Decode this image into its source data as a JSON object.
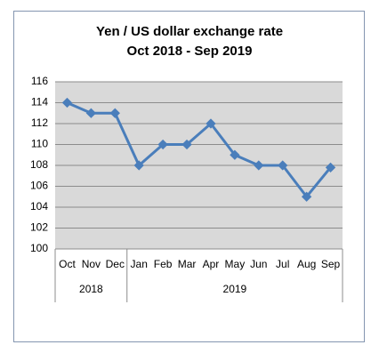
{
  "chart_data": {
    "type": "line",
    "title": "Yen / US dollar exchange rate",
    "subtitle": "Oct 2018 -  Sep  2019",
    "categories": [
      "Oct",
      "Nov",
      "Dec",
      "Jan",
      "Feb",
      "Mar",
      "Apr",
      "May",
      "Jun",
      "Jul",
      "Aug",
      "Sep"
    ],
    "category_groups": [
      {
        "label": "2018",
        "span": 3
      },
      {
        "label": "2019",
        "span": 9
      }
    ],
    "values": [
      114,
      113,
      113,
      108,
      110,
      110,
      112,
      109,
      108,
      108,
      105,
      107.8
    ],
    "color": "#4a7ebb",
    "ylim": [
      100,
      116
    ],
    "yticks": [
      100,
      102,
      104,
      106,
      108,
      110,
      112,
      114,
      116
    ],
    "grid": true
  }
}
